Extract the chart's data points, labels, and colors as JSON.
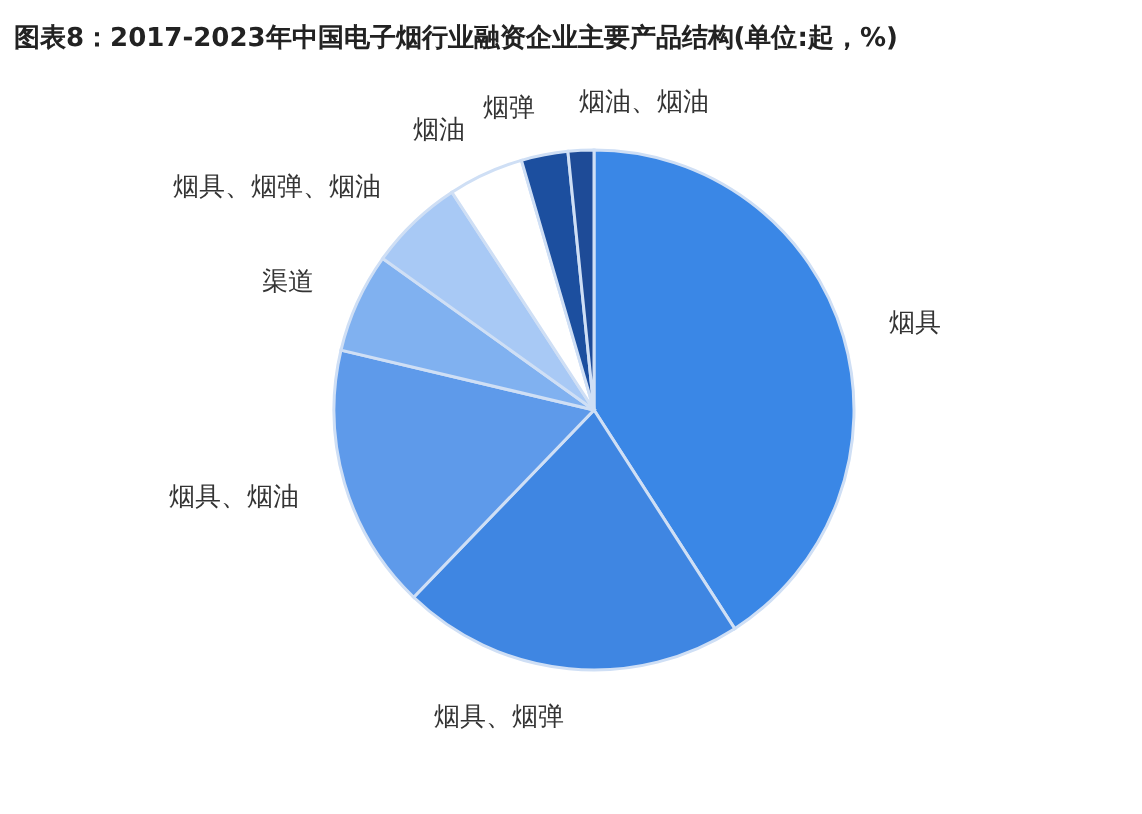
{
  "chart_data": {
    "type": "pie",
    "title": "图表8：2017-2023年中国电子烟行业融资企业主要产品结构(单位:起，%)",
    "categories": [
      "烟具",
      "烟具、烟弹",
      "烟具、烟油",
      "渠道",
      "烟具、烟弹、烟油",
      "烟油",
      "烟弹",
      "烟油、烟油"
    ],
    "values": [
      40.9,
      21.3,
      16.5,
      6.2,
      5.9,
      4.7,
      2.9,
      1.6
    ],
    "colors": [
      "#3a87e6",
      "#3f86e2",
      "#5e9aea",
      "#80b1f0",
      "#a8c9f5",
      "#ffffff",
      "#1c4f9f",
      "#1e4b97"
    ],
    "legend": false
  }
}
